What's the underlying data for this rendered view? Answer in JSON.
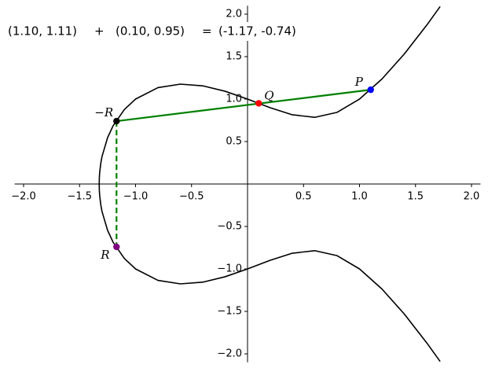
{
  "chart_data": {
    "type": "line",
    "title_parts": [
      {
        "text": "(1.10, 1.11)",
        "color": "#0000cc"
      },
      {
        "text": "+",
        "color": "#000000"
      },
      {
        "text": "(0.10, 0.95)",
        "color": "#dd0000"
      },
      {
        "text": "=",
        "color": "#000000"
      },
      {
        "text": "(-1.17, -0.74)",
        "color": "#800080"
      }
    ],
    "xlim": [
      -2.08,
      2.08
    ],
    "ylim": [
      -2.1,
      2.1
    ],
    "xticks": [
      {
        "value": -2.0,
        "label": "−2.0"
      },
      {
        "value": -1.5,
        "label": "−1.5"
      },
      {
        "value": -1.0,
        "label": "−1.0"
      },
      {
        "value": -0.5,
        "label": "−0.5"
      },
      0.5,
      {
        "value": 1.0,
        "label": "1.0"
      },
      1.5,
      {
        "value": 2.0,
        "label": "2.0"
      }
    ],
    "yticks": [
      {
        "value": -2.0,
        "label": "−2.0"
      },
      {
        "value": -1.5,
        "label": "−1.5"
      },
      {
        "value": -1.0,
        "label": "−1.0"
      },
      {
        "value": -0.5,
        "label": "−0.5"
      },
      0.5,
      {
        "value": 1.0,
        "label": "1.0"
      },
      1.5,
      {
        "value": 2.0,
        "label": "2.0"
      }
    ],
    "series": [
      {
        "color": "#000000",
        "x": [
          1.72,
          1.6,
          1.4,
          1.2,
          1.0,
          0.8,
          0.6,
          0.4,
          0.2,
          0,
          -0.2,
          -0.4,
          -0.6,
          -0.8,
          -1.0,
          -1.1,
          -1.2,
          -1.25,
          -1.3,
          -1.31,
          -1.32,
          -1.323,
          -1.3247,
          -1.323,
          -1.32,
          -1.31,
          -1.3,
          -1.25,
          -1.2,
          -1.1,
          -1.0,
          -0.8,
          -0.6,
          -0.4,
          -0.2,
          0,
          0.2,
          0.4,
          0.6,
          0.8,
          1.0,
          1.2,
          1.4,
          1.6,
          1.72
        ],
        "values": [
          2.09,
          1.87,
          1.531,
          1.236,
          1,
          0.844,
          0.785,
          0.815,
          0.899,
          1,
          1.092,
          1.156,
          1.176,
          1.135,
          1,
          0.877,
          0.687,
          0.545,
          0.321,
          0.249,
          0.141,
          0.085,
          0,
          -0.085,
          -0.141,
          -0.249,
          -0.321,
          -0.545,
          -0.687,
          -0.877,
          -1,
          -1.135,
          -1.176,
          -1.156,
          -1.092,
          -1,
          -0.899,
          -0.815,
          -0.785,
          -0.844,
          -1,
          -1.236,
          -1.531,
          -1.87,
          -2.09
        ]
      }
    ],
    "points": [
      {
        "label": "P",
        "x": 1.1,
        "y": 1.11,
        "color": "#0000ff"
      },
      {
        "label": "Q",
        "x": 0.1,
        "y": 0.95,
        "color": "#ff0000"
      },
      {
        "label": "−R",
        "x": -1.17,
        "y": 0.74,
        "color": "#000000"
      },
      {
        "label": "R",
        "x": -1.17,
        "y": -0.74,
        "color": "#800080"
      }
    ],
    "line_color": "#008000"
  }
}
